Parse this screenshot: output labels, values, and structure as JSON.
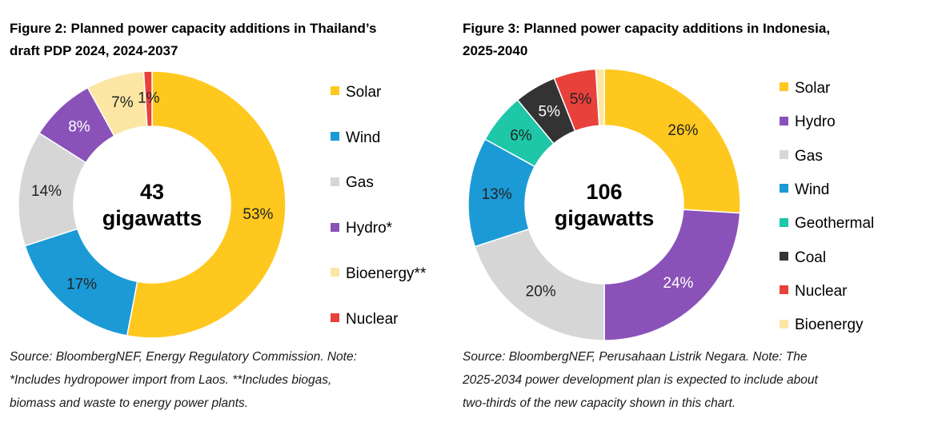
{
  "chart_data": [
    {
      "type": "pie",
      "title_lines": [
        "Figure 2:  Planned power capacity additions in Thailand’s",
        "draft PDP 2024, 2024-2037"
      ],
      "center_label": [
        "43",
        "gigawatts"
      ],
      "slices": [
        {
          "name": "Solar",
          "value": 53,
          "label": "53%",
          "color": "#FFC81E",
          "label_color": "#222222"
        },
        {
          "name": "Wind",
          "value": 17,
          "label": "17%",
          "color": "#1C9AD6",
          "label_color": "#222222"
        },
        {
          "name": "Gas",
          "value": 14,
          "label": "14%",
          "color": "#D6D6D6",
          "label_color": "#222222"
        },
        {
          "name": "Hydro*",
          "value": 8,
          "label": "8%",
          "color": "#8A52B8",
          "label_color": "#ffffff"
        },
        {
          "name": "Bioenergy**",
          "value": 7,
          "label": "7%",
          "color": "#FCE6A4",
          "label_color": "#222222"
        },
        {
          "name": "Nuclear",
          "value": 1,
          "label": "1%",
          "color": "#E8413B",
          "label_color": "#222222"
        }
      ],
      "legend": [
        "Solar",
        "Wind",
        "Gas",
        "Hydro*",
        "Bioenergy**",
        "Nuclear"
      ],
      "source_lines": [
        "Source: BloombergNEF, Energy Regulatory Commission. Note:",
        "*Includes hydropower import from Laos. **Includes biogas,",
        "biomass and waste to energy power plants."
      ]
    },
    {
      "type": "pie",
      "title_lines": [
        "Figure 3:  Planned power capacity additions in Indonesia,",
        "2025-2040"
      ],
      "center_label": [
        "106",
        "gigawatts"
      ],
      "slices": [
        {
          "name": "Solar",
          "value": 26,
          "label": "26%",
          "color": "#FFC81E",
          "label_color": "#222222"
        },
        {
          "name": "Hydro",
          "value": 24,
          "label": "24%",
          "color": "#8A52B8",
          "label_color": "#ffffff"
        },
        {
          "name": "Gas",
          "value": 20,
          "label": "20%",
          "color": "#D6D6D6",
          "label_color": "#222222"
        },
        {
          "name": "Wind",
          "value": 13,
          "label": "13%",
          "color": "#1C9AD6",
          "label_color": "#222222"
        },
        {
          "name": "Geothermal",
          "value": 6,
          "label": "6%",
          "color": "#1DC7A8",
          "label_color": "#222222"
        },
        {
          "name": "Coal",
          "value": 5,
          "label": "5%",
          "color": "#333333",
          "label_color": "#ffffff"
        },
        {
          "name": "Nuclear",
          "value": 5,
          "label": "5%",
          "color": "#E8413B",
          "label_color": "#222222"
        },
        {
          "name": "Bioenergy",
          "value": 1,
          "label": "",
          "color": "#FCE6A4",
          "label_color": "#222222"
        }
      ],
      "legend": [
        "Solar",
        "Hydro",
        "Gas",
        "Wind",
        "Geothermal",
        "Coal",
        "Nuclear",
        "Bioenergy"
      ],
      "source_lines": [
        "Source: BloombergNEF, Perusahaan Listrik Negara. Note: The",
        "2025-2034 power development plan is expected to include about",
        "two-thirds of the new capacity shown in this chart."
      ]
    }
  ]
}
